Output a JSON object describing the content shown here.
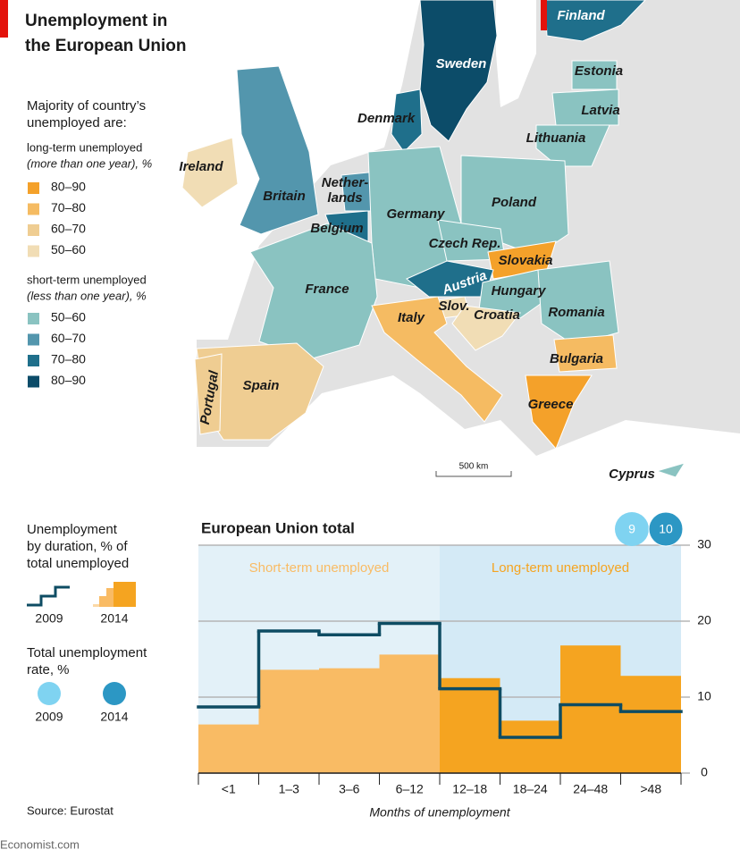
{
  "header": {
    "title": [
      "Unemployment in",
      "the European Union"
    ]
  },
  "legend": {
    "heading": [
      "Majority of country’s",
      "unemployed are:"
    ],
    "long_term": {
      "label": "long-term unemployed",
      "note": "(more than one year), %",
      "bins": [
        {
          "label": "80–90",
          "color": "#f4a12a"
        },
        {
          "label": "70–80",
          "color": "#f5bb62"
        },
        {
          "label": "60–70",
          "color": "#efcd92"
        },
        {
          "label": "50–60",
          "color": "#f1ddb5"
        }
      ]
    },
    "short_term": {
      "label": "short-term unemployed",
      "note": "(less than one year), %",
      "bins": [
        {
          "label": "50–60",
          "color": "#8ac3c1"
        },
        {
          "label": "60–70",
          "color": "#5396ad"
        },
        {
          "label": "70–80",
          "color": "#1f6f8b"
        },
        {
          "label": "80–90",
          "color": "#0c4c69"
        }
      ]
    }
  },
  "map": {
    "scale": "500 km",
    "countries": [
      {
        "name": "Finland",
        "color": "#1f6f8b"
      },
      {
        "name": "Sweden",
        "color": "#0c4c69"
      },
      {
        "name": "Denmark",
        "color": "#1f6f8b"
      },
      {
        "name": "Estonia",
        "color": "#8ac3c1"
      },
      {
        "name": "Latvia",
        "color": "#8ac3c1"
      },
      {
        "name": "Lithuania",
        "color": "#8ac3c1"
      },
      {
        "name": "Ireland",
        "color": "#f1ddb5"
      },
      {
        "name": "Britain",
        "color": "#5396ad"
      },
      {
        "name": [
          "Nether-",
          "lands"
        ],
        "color": "#5396ad"
      },
      {
        "name": "Belgium",
        "color": "#1f6f8b"
      },
      {
        "name": "Germany",
        "color": "#8ac3c1"
      },
      {
        "name": "Poland",
        "color": "#8ac3c1"
      },
      {
        "name": "Czech Rep.",
        "color": "#8ac3c1"
      },
      {
        "name": "Slovakia",
        "color": "#f4a12a"
      },
      {
        "name": "Austria",
        "color": "#1f6f8b"
      },
      {
        "name": "Hungary",
        "color": "#8ac3c1"
      },
      {
        "name": "France",
        "color": "#8ac3c1"
      },
      {
        "name": "Slov.",
        "color": "#f1ddb5"
      },
      {
        "name": "Croatia",
        "color": "#f1ddb5"
      },
      {
        "name": "Romania",
        "color": "#8ac3c1"
      },
      {
        "name": "Italy",
        "color": "#f5bb62"
      },
      {
        "name": "Bulgaria",
        "color": "#f5bb62"
      },
      {
        "name": "Greece",
        "color": "#f4a12a"
      },
      {
        "name": "Spain",
        "color": "#efcd92"
      },
      {
        "name": "Portugal",
        "color": "#efcd92"
      },
      {
        "name": "Cyprus",
        "color": "#8ac3c1"
      }
    ]
  },
  "chart_data": {
    "type": "bar",
    "title": "European Union total",
    "subtitle": [
      "Unemployment",
      "by duration, % of",
      "total unemployed"
    ],
    "x_label": "Months of unemployment",
    "categories": [
      "<1",
      "1–3",
      "3–6",
      "6–12",
      "12–18",
      "18–24",
      "24–48",
      ">48"
    ],
    "regions": [
      {
        "label": "Short-term unemployed",
        "color": "#e3f1f8",
        "bar_color": "#f9bb64"
      },
      {
        "label": "Long-term unemployed",
        "color": "#d4eaf6",
        "bar_color": "#f5a420"
      }
    ],
    "series": [
      {
        "name": "2014",
        "color": "#f5a420",
        "values": [
          6.4,
          13.6,
          13.8,
          15.6,
          12.5,
          6.9,
          16.8,
          12.8
        ]
      },
      {
        "name": "2009",
        "color": "#0e4c63",
        "values": [
          8.7,
          18.7,
          18.2,
          19.7,
          11.1,
          4.7,
          9.0,
          8.1
        ]
      }
    ],
    "ylim": [
      0,
      30
    ],
    "yticks": [
      0,
      10,
      20,
      30
    ],
    "grid": true,
    "total_rate": {
      "title": [
        "Total unemployment",
        "rate, %"
      ],
      "series": [
        {
          "name": "2009",
          "color": "#7fd3f1",
          "value": 9
        },
        {
          "name": "2014",
          "color": "#2c97c4",
          "value": 10
        }
      ]
    },
    "source": "Source: Eurostat",
    "credit": "Economist.com"
  }
}
